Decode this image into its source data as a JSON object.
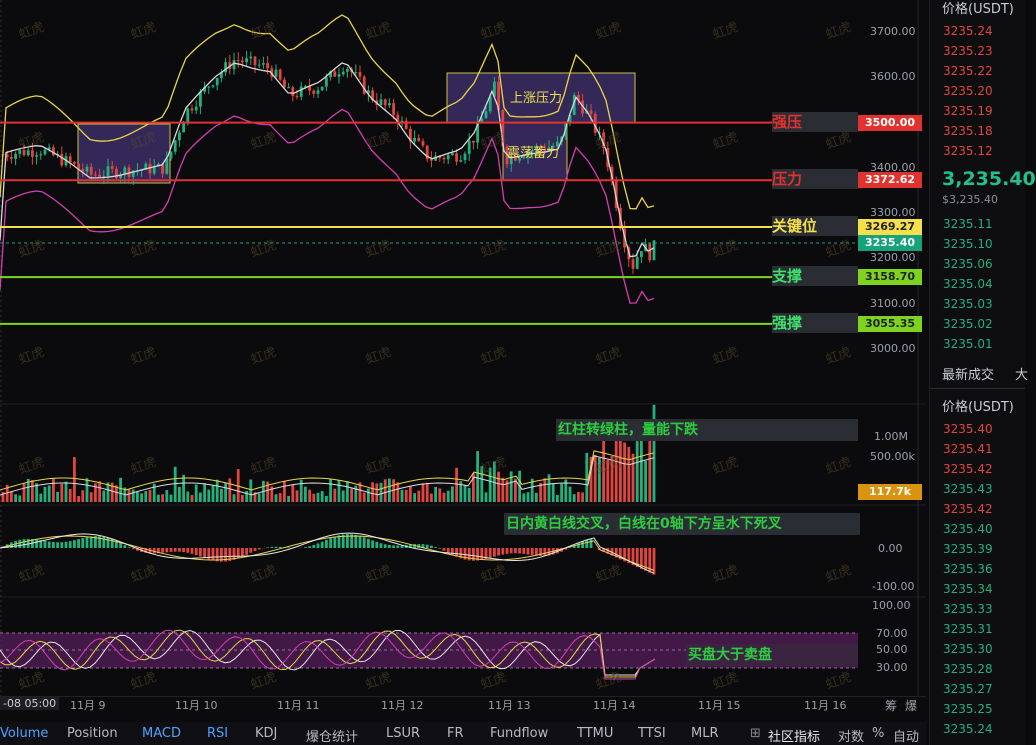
{
  "price_axis": [
    "3700.00",
    "3600.00",
    "3500.00",
    "3400.00",
    "3300.00",
    "3200.00",
    "3100.00",
    "3000.00"
  ],
  "levels": [
    {
      "name": "强压",
      "price": "3500.00",
      "color": "#e0322e",
      "name_color": "#e0322e",
      "tag_bg": "#e0322e"
    },
    {
      "name": "压力",
      "price": "3372.62",
      "color": "#e0322e",
      "name_color": "#e0322e",
      "tag_bg": "#e0322e"
    },
    {
      "name": "关键位",
      "price": "3269.27",
      "color": "#f3e04a",
      "name_color": "#f3e04a",
      "tag_bg": "#f3e04a"
    },
    {
      "name": "支撑",
      "price": "3158.70",
      "color": "#7ed321",
      "name_color": "#3ee06a",
      "tag_bg": "#7ed321"
    },
    {
      "name": "强撑",
      "price": "3055.35",
      "color": "#7ed321",
      "name_color": "#3ee06a",
      "tag_bg": "#7ed321"
    }
  ],
  "current_price_tag": "3235.40",
  "boxes": [
    {
      "label": ""
    },
    {
      "label": "上涨压力"
    },
    {
      "label": "震荡蓄力"
    }
  ],
  "volume_axis": [
    "1.00M",
    "500.00k"
  ],
  "volume_tag": "117.7k",
  "macd_axis": [
    "0.00",
    "-100.00"
  ],
  "rsi_axis": [
    "100.00",
    "70.00",
    "50.00",
    "30.00"
  ],
  "annotations": {
    "volume": "红柱转绿柱，量能下跌",
    "macd": "日内黄白线交叉，白线在0轴下方呈水下死叉",
    "rsi": "买盘大于卖盘"
  },
  "dates": [
    "-08 05:00",
    "11月 9",
    "11月 10",
    "11月 11",
    "11月 12",
    "11月 13",
    "11月 14",
    "11月 15",
    "11月 16"
  ],
  "time_right": [
    "筹",
    "爆"
  ],
  "toolbar": {
    "items": [
      "Volume",
      "Position",
      "MACD",
      "RSI",
      "KDJ",
      "爆仓统计",
      "LSUR",
      "FR",
      "Fundflow",
      "TTMU",
      "TTSI",
      "MLR"
    ],
    "right": [
      "社区指标",
      "对数",
      "%",
      "自动"
    ]
  },
  "watermark": "虹虎",
  "side": {
    "header": "价格(USDT)",
    "asks": [
      "3235.24",
      "3235.23",
      "3235.22",
      "3235.20",
      "3235.19",
      "3235.18",
      "3235.12"
    ],
    "last_price": "3,235.40",
    "last_sub": "$3,235.40",
    "bids": [
      "3235.11",
      "3235.10",
      "3235.06",
      "3235.04",
      "3235.03",
      "3235.02",
      "3235.01"
    ],
    "trades_title": "最新成交",
    "trades_tab2": "大",
    "trades_header": "价格(USDT)",
    "trades": [
      {
        "p": "3235.40",
        "c": "red"
      },
      {
        "p": "3235.41",
        "c": "red"
      },
      {
        "p": "3235.42",
        "c": "red"
      },
      {
        "p": "3235.43",
        "c": "green"
      },
      {
        "p": "3235.42",
        "c": "red"
      },
      {
        "p": "3235.40",
        "c": "green"
      },
      {
        "p": "3235.39",
        "c": "green"
      },
      {
        "p": "3235.36",
        "c": "green"
      },
      {
        "p": "3235.34",
        "c": "green"
      },
      {
        "p": "3235.33",
        "c": "green"
      },
      {
        "p": "3235.31",
        "c": "green"
      },
      {
        "p": "3235.30",
        "c": "green"
      },
      {
        "p": "3235.28",
        "c": "green"
      },
      {
        "p": "3235.27",
        "c": "green"
      },
      {
        "p": "3235.25",
        "c": "green"
      },
      {
        "p": "3235.24",
        "c": "green"
      }
    ]
  },
  "colors": {
    "up": "#22b07d",
    "down": "#e0463f",
    "box": "#3a2e66",
    "box_border": "#f0e050",
    "boll_upper": "#e8d54a",
    "boll_mid": "#d8d8d8",
    "boll_lower": "#d23fb0"
  }
}
